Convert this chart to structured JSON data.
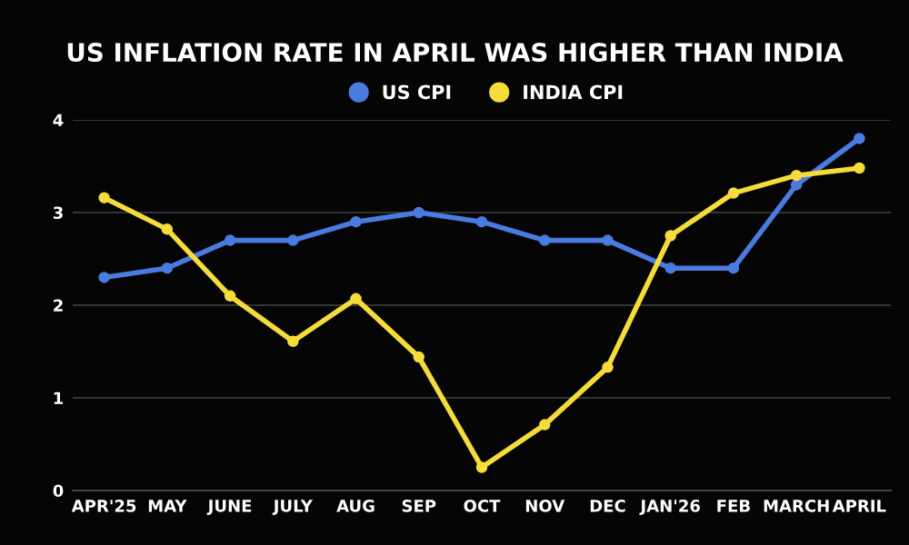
{
  "chart_data": {
    "type": "line",
    "title": "US INFLATION RATE IN APRIL WAS HIGHER THAN INDIA",
    "categories": [
      "APR'25",
      "MAY",
      "JUNE",
      "JULY",
      "AUG",
      "SEP",
      "OCT",
      "NOV",
      "DEC",
      "JAN'26",
      "FEB",
      "MARCH",
      "APRIL"
    ],
    "series": [
      {
        "name": "US CPI",
        "color": "#4a7be0",
        "values": [
          2.3,
          2.4,
          2.7,
          2.7,
          2.9,
          3.0,
          2.9,
          2.7,
          2.7,
          2.4,
          2.4,
          3.3,
          3.8
        ]
      },
      {
        "name": "INDIA CPI",
        "color": "#f5dc3a",
        "values": [
          3.16,
          2.82,
          2.1,
          1.61,
          2.07,
          1.44,
          0.25,
          0.71,
          1.33,
          2.75,
          3.21,
          3.4,
          3.48
        ]
      }
    ],
    "ylim": [
      0,
      4
    ],
    "yticks": [
      0,
      1,
      2,
      3,
      4
    ],
    "grid": "y",
    "legend": "top",
    "marker": "circle",
    "line_style": "solid"
  }
}
